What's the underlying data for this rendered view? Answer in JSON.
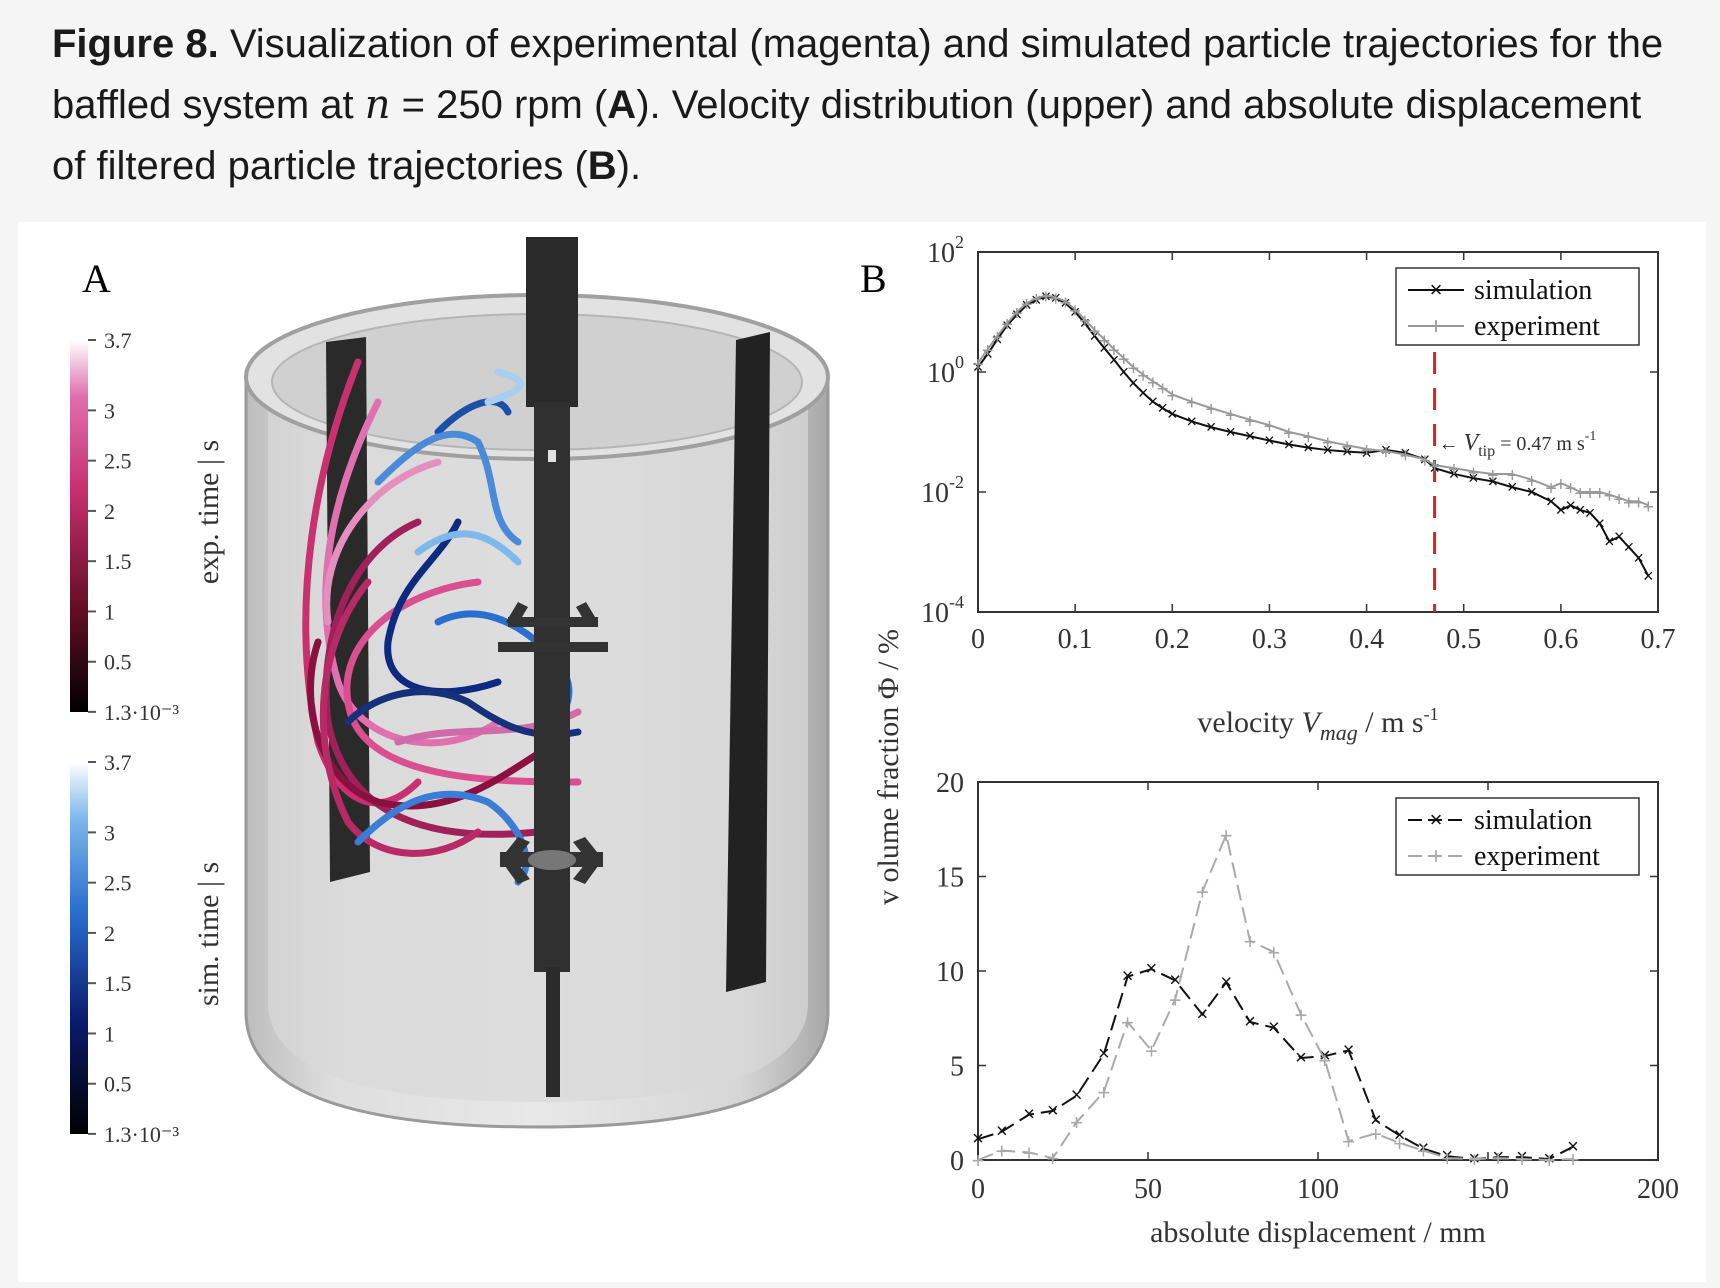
{
  "caption": {
    "figure_label": "Figure 8.",
    "text_1": " Visualization of experimental (magenta) and simulated particle trajectories for the baffled system at ",
    "math_n": "n",
    "text_2": " = 250 rpm (",
    "bold_A": "A",
    "text_3": "). Velocity distribution (upper) and absolute displacement of filtered particle trajectories (",
    "bold_B": "B",
    "text_4": ")."
  },
  "panel_a": {
    "label": "A",
    "colorbar_exp": {
      "title": "exp. time | s",
      "ticks": [
        "3.7",
        "3",
        "2.5",
        "2",
        "1.5",
        "1",
        "0.5",
        "1.3·10⁻³"
      ],
      "colors": [
        "#000000",
        "#6b0f2a",
        "#c8306f",
        "#e070b0",
        "#ffffff"
      ]
    },
    "colorbar_sim": {
      "title": "sim. time | s",
      "ticks": [
        "3.7",
        "3",
        "2.5",
        "2",
        "1.5",
        "1",
        "0.5",
        "1.3·10⁻³"
      ],
      "colors": [
        "#000000",
        "#0a1a6b",
        "#2a6fd0",
        "#7fb8ea",
        "#ffffff"
      ]
    }
  },
  "panel_b": {
    "label": "B"
  },
  "shared_ylabel": "v olume fraction Φ / %",
  "chart_data": [
    {
      "type": "line",
      "title": "",
      "xlabel_main": "velocity ",
      "xlabel_var": "V",
      "xlabel_sub": "mag",
      "xlabel_unit": " / m s",
      "xlabel_exp": "-1",
      "x_ticks": [
        "0",
        "0.1",
        "0.2",
        "0.3",
        "0.4",
        "0.5",
        "0.6",
        "0.7"
      ],
      "y_ticks_base": "10",
      "y_ticks_exp": [
        "2",
        "0",
        "-2",
        "-4"
      ],
      "xlim": [
        0,
        0.7
      ],
      "ylim_log10": [
        -4,
        2
      ],
      "yscale": "log",
      "legend": {
        "position": "top-right",
        "entries": [
          "simulation",
          "experiment"
        ]
      },
      "annotation": {
        "var": "V",
        "sub": "tip",
        "text": " = 0.47 m s",
        "exp": "-1",
        "x": 0.47,
        "color": "#e02020"
      },
      "series": [
        {
          "name": "simulation",
          "color": "#111111",
          "marker": "x",
          "x": [
            0,
            0.01,
            0.02,
            0.03,
            0.04,
            0.05,
            0.06,
            0.07,
            0.08,
            0.09,
            0.1,
            0.11,
            0.12,
            0.13,
            0.14,
            0.15,
            0.16,
            0.17,
            0.18,
            0.19,
            0.2,
            0.22,
            0.24,
            0.26,
            0.28,
            0.3,
            0.32,
            0.34,
            0.36,
            0.38,
            0.4,
            0.42,
            0.44,
            0.46,
            0.47,
            0.49,
            0.51,
            0.53,
            0.55,
            0.57,
            0.59,
            0.6,
            0.61,
            0.62,
            0.63,
            0.64,
            0.65,
            0.66,
            0.67,
            0.68,
            0.69
          ],
          "y": [
            1.2,
            2,
            3.5,
            6,
            9,
            13,
            16,
            18,
            17,
            14,
            10,
            6.5,
            4,
            2.5,
            1.6,
            1.0,
            0.65,
            0.45,
            0.32,
            0.25,
            0.2,
            0.15,
            0.12,
            0.1,
            0.085,
            0.072,
            0.062,
            0.055,
            0.05,
            0.047,
            0.045,
            0.05,
            0.045,
            0.035,
            0.025,
            0.02,
            0.017,
            0.015,
            0.012,
            0.01,
            0.007,
            0.005,
            0.006,
            0.005,
            0.0045,
            0.003,
            0.0015,
            0.0018,
            0.0012,
            0.0008,
            0.0004
          ]
        },
        {
          "name": "experiment",
          "color": "#999999",
          "marker": "+",
          "x": [
            0,
            0.01,
            0.02,
            0.03,
            0.04,
            0.05,
            0.06,
            0.07,
            0.08,
            0.09,
            0.1,
            0.11,
            0.12,
            0.13,
            0.14,
            0.15,
            0.16,
            0.17,
            0.18,
            0.19,
            0.2,
            0.22,
            0.24,
            0.26,
            0.28,
            0.3,
            0.32,
            0.34,
            0.36,
            0.38,
            0.4,
            0.42,
            0.44,
            0.46,
            0.47,
            0.49,
            0.51,
            0.53,
            0.55,
            0.57,
            0.59,
            0.6,
            0.61,
            0.62,
            0.63,
            0.64,
            0.65,
            0.66,
            0.67,
            0.68,
            0.69
          ],
          "y": [
            1.4,
            2.4,
            4,
            6.5,
            10,
            14,
            17,
            19,
            17.5,
            15,
            11,
            7.5,
            5,
            3.5,
            2.4,
            1.7,
            1.2,
            0.9,
            0.7,
            0.55,
            0.42,
            0.32,
            0.25,
            0.2,
            0.16,
            0.13,
            0.1,
            0.085,
            0.07,
            0.06,
            0.052,
            0.048,
            0.042,
            0.035,
            0.028,
            0.025,
            0.022,
            0.02,
            0.02,
            0.016,
            0.012,
            0.014,
            0.012,
            0.01,
            0.01,
            0.01,
            0.009,
            0.008,
            0.007,
            0.007,
            0.006
          ]
        }
      ]
    },
    {
      "type": "line",
      "title": "",
      "xlabel": "absolute displacement / mm",
      "x_ticks": [
        "0",
        "50",
        "100",
        "150",
        "200"
      ],
      "y_ticks": [
        "0",
        "5",
        "10",
        "15",
        "20"
      ],
      "xlim": [
        0,
        200
      ],
      "ylim": [
        0,
        20
      ],
      "legend": {
        "position": "top-right",
        "entries": [
          "simulation",
          "experiment"
        ]
      },
      "series": [
        {
          "name": "simulation",
          "color": "#111111",
          "marker": "x",
          "x": [
            0,
            7,
            15,
            22,
            29,
            37,
            44,
            51,
            58,
            66,
            73,
            80,
            87,
            95,
            102,
            109,
            117,
            124,
            131,
            138,
            146,
            153,
            160,
            168,
            175
          ],
          "y": [
            1.1,
            1.5,
            2.4,
            2.6,
            3.4,
            5.6,
            9.7,
            10.1,
            9.5,
            7.7,
            9.4,
            7.3,
            7.0,
            5.4,
            5.5,
            5.8,
            2.1,
            1.3,
            0.6,
            0.2,
            0.05,
            0.15,
            0.15,
            0.05,
            0.7
          ]
        },
        {
          "name": "experiment",
          "color": "#aaaaaa",
          "marker": "+",
          "x": [
            0,
            7,
            15,
            22,
            29,
            37,
            44,
            51,
            58,
            66,
            73,
            80,
            87,
            95,
            102,
            109,
            117,
            124,
            131,
            138,
            146,
            153,
            160,
            168,
            175
          ],
          "y": [
            0,
            0.5,
            0.4,
            0.1,
            2.0,
            3.6,
            7.3,
            5.8,
            8.5,
            14.2,
            17.2,
            11.6,
            11.0,
            7.7,
            5.3,
            1.0,
            1.4,
            0.9,
            0.5,
            0.1,
            0.05,
            0.1,
            0.05,
            0,
            0.05
          ]
        }
      ]
    }
  ]
}
